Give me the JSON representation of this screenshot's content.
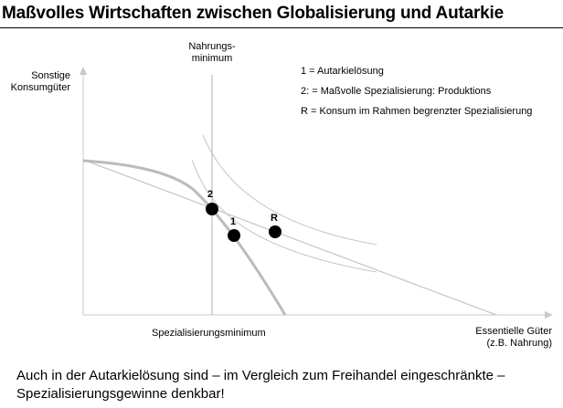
{
  "title": "Maßvolles Wirtschaften zwischen Globalisierung und Autarkie",
  "diagram": {
    "y_axis_label_line1": "Sonstige",
    "y_axis_label_line2": "Konsumgüter",
    "x_axis_label_line1": "Essentielle Güter",
    "x_axis_label_line2": "(z.B. Nahrung)",
    "vertical_line_label_line1": "Nahrungs-",
    "vertical_line_label_line2": "minimum",
    "horizontal_label": "Spezialisierungsminimum",
    "points": [
      {
        "label": "2"
      },
      {
        "label": "1"
      },
      {
        "label": "R"
      }
    ]
  },
  "legend": [
    "1 = Autarkielösung",
    "2: = Maßvolle Spezialisierung: Produktions",
    "R = Konsum im Rahmen begrenzter Spezialisierung"
  ],
  "caption": "Auch in der Autarkielösung sind – im Vergleich zum Freihandel eingeschränkte – Spezialisierungsgewinne denkbar!"
}
